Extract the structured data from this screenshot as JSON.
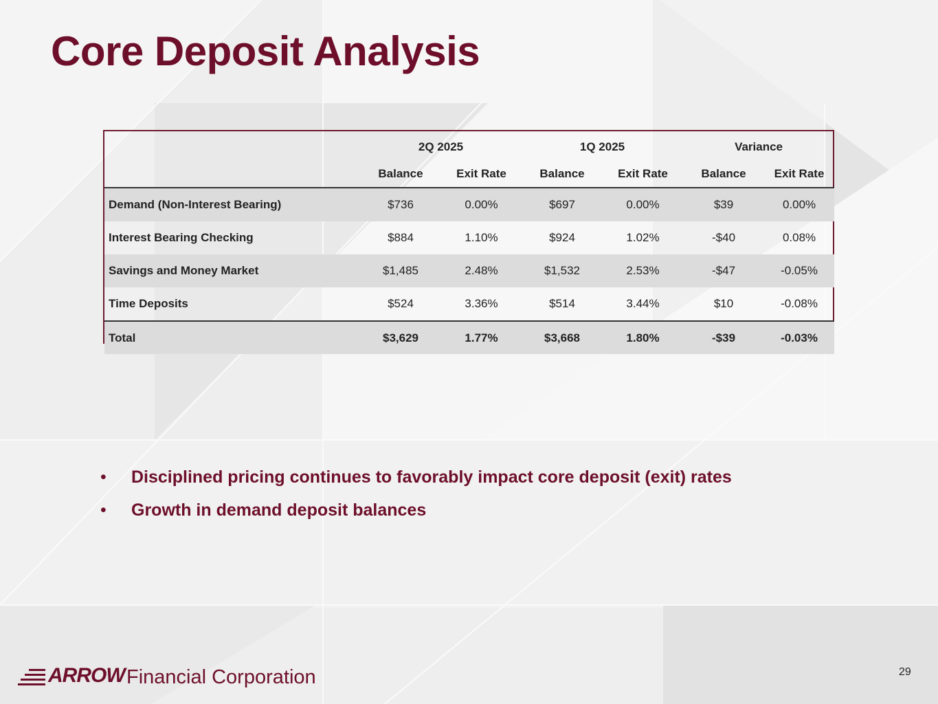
{
  "slide": {
    "title": "Core Deposit Analysis",
    "page_number": "29"
  },
  "table": {
    "groups": [
      "2Q 2025",
      "1Q 2025",
      "Variance"
    ],
    "subheaders": [
      "Balance",
      "Exit Rate",
      "Balance",
      "Exit Rate",
      "Balance",
      "Exit Rate"
    ],
    "rows": [
      {
        "label": "Demand (Non-Interest Bearing)",
        "values": [
          "$736",
          "0.00%",
          "$697",
          "0.00%",
          "$39",
          "0.00%"
        ]
      },
      {
        "label": "Interest Bearing Checking",
        "values": [
          "$884",
          "1.10%",
          "$924",
          "1.02%",
          "-$40",
          "0.08%"
        ]
      },
      {
        "label": "Savings and Money Market",
        "values": [
          "$1,485",
          "2.48%",
          "$1,532",
          "2.53%",
          "-$47",
          "-0.05%"
        ]
      },
      {
        "label": "Time Deposits",
        "values": [
          "$524",
          "3.36%",
          "$514",
          "3.44%",
          "$10",
          "-0.08%"
        ]
      }
    ],
    "total": {
      "label": "Total",
      "values": [
        "$3,629",
        "1.77%",
        "$3,668",
        "1.80%",
        "-$39",
        "-0.03%"
      ]
    }
  },
  "bullets": [
    "Disciplined pricing continues to favorably impact core deposit (exit) rates",
    "Growth in demand deposit balances"
  ],
  "bullet_symbol": "•",
  "logo": {
    "brand": "ARROW",
    "rest": "Financial Corporation"
  },
  "colors": {
    "brand": "#6d0f2a",
    "border": "#6d1a2e",
    "row_shade": "#dcdcdc"
  }
}
